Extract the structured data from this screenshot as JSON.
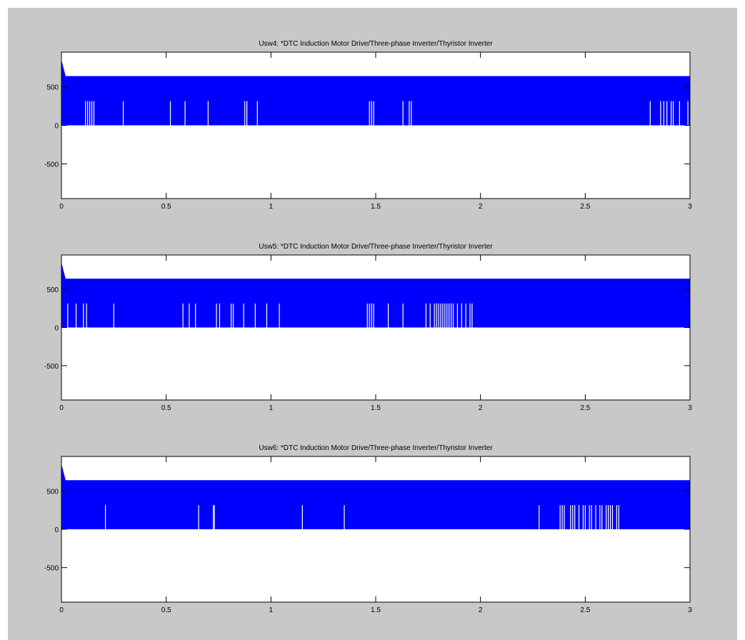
{
  "figure": {
    "background": "#c8c8c8",
    "axes_background": "#ffffff",
    "series_color": "#0000ff"
  },
  "chart_data": [
    {
      "type": "line",
      "title": "Usw4: *DTC Induction Motor Drive/Three-phase Inverter/Thyristor Inverter",
      "xlabel": "",
      "ylabel": "",
      "xlim": [
        0,
        3
      ],
      "ylim": [
        -950,
        950
      ],
      "xticks": [
        0,
        0.5,
        1,
        1.5,
        2,
        2.5,
        3
      ],
      "xtick_labels": [
        "0",
        "0.5",
        "1",
        "1.5",
        "2",
        "2.5",
        "3"
      ],
      "yticks": [
        500,
        0,
        -500
      ],
      "ytick_labels": [
        "500",
        "0",
        "-500"
      ],
      "grid": false,
      "series": [
        {
          "color": "#0000ff",
          "band": {
            "low": 0,
            "high_start": 850,
            "high_settle_time": 0.02,
            "high_settled": 640,
            "high_end": 640
          },
          "notch_level": 315,
          "notches": [
            0.115,
            0.125,
            0.135,
            0.145,
            0.155,
            0.295,
            0.52,
            0.59,
            0.7,
            0.875,
            0.885,
            0.935,
            1.47,
            1.48,
            1.49,
            1.63,
            1.66,
            1.67,
            2.81,
            2.86,
            2.875,
            2.89,
            2.91,
            2.92,
            2.95,
            2.99
          ]
        }
      ]
    },
    {
      "type": "line",
      "title": "Usw5: *DTC Induction Motor Drive/Three-phase Inverter/Thyristor Inverter",
      "xlabel": "",
      "ylabel": "",
      "xlim": [
        0,
        3
      ],
      "ylim": [
        -950,
        950
      ],
      "xticks": [
        0,
        0.5,
        1,
        1.5,
        2,
        2.5,
        3
      ],
      "xtick_labels": [
        "0",
        "0.5",
        "1",
        "1.5",
        "2",
        "2.5",
        "3"
      ],
      "yticks": [
        500,
        0,
        -500
      ],
      "ytick_labels": [
        "500",
        "0",
        "-500"
      ],
      "grid": false,
      "series": [
        {
          "color": "#0000ff",
          "band": {
            "low": 0,
            "high_start": 850,
            "high_settle_time": 0.02,
            "high_settled": 640,
            "high_end": 640
          },
          "notch_level": 315,
          "notches": [
            0.03,
            0.07,
            0.105,
            0.12,
            0.25,
            0.58,
            0.61,
            0.64,
            0.74,
            0.755,
            0.81,
            0.82,
            0.87,
            0.925,
            0.98,
            1.04,
            1.46,
            1.47,
            1.48,
            1.49,
            1.56,
            1.63,
            1.74,
            1.76,
            1.78,
            1.79,
            1.8,
            1.81,
            1.82,
            1.83,
            1.84,
            1.85,
            1.86,
            1.87,
            1.89,
            1.91,
            1.93,
            1.95,
            1.96
          ]
        }
      ]
    },
    {
      "type": "line",
      "title": "Usw6: *DTC Induction Motor Drive/Three-phase Inverter/Thyristor Inverter",
      "xlabel": "",
      "ylabel": "",
      "xlim": [
        0,
        3
      ],
      "ylim": [
        -950,
        950
      ],
      "xticks": [
        0,
        0.5,
        1,
        1.5,
        2,
        2.5,
        3
      ],
      "xtick_labels": [
        "0",
        "0.5",
        "1",
        "1.5",
        "2",
        "2.5",
        "3"
      ],
      "yticks": [
        500,
        0,
        -500
      ],
      "ytick_labels": [
        "500",
        "0",
        "-500"
      ],
      "grid": false,
      "series": [
        {
          "color": "#0000ff",
          "band": {
            "low": 0,
            "high_start": 850,
            "high_settle_time": 0.02,
            "high_settled": 640,
            "high_end": 640
          },
          "notch_level": 315,
          "notches": [
            0.21,
            0.655,
            0.725,
            0.73,
            1.15,
            1.35,
            2.28,
            2.38,
            2.39,
            2.4,
            2.43,
            2.44,
            2.45,
            2.47,
            2.49,
            2.5,
            2.52,
            2.53,
            2.55,
            2.57,
            2.58,
            2.6,
            2.61,
            2.62,
            2.63,
            2.65,
            2.66
          ]
        }
      ]
    }
  ]
}
